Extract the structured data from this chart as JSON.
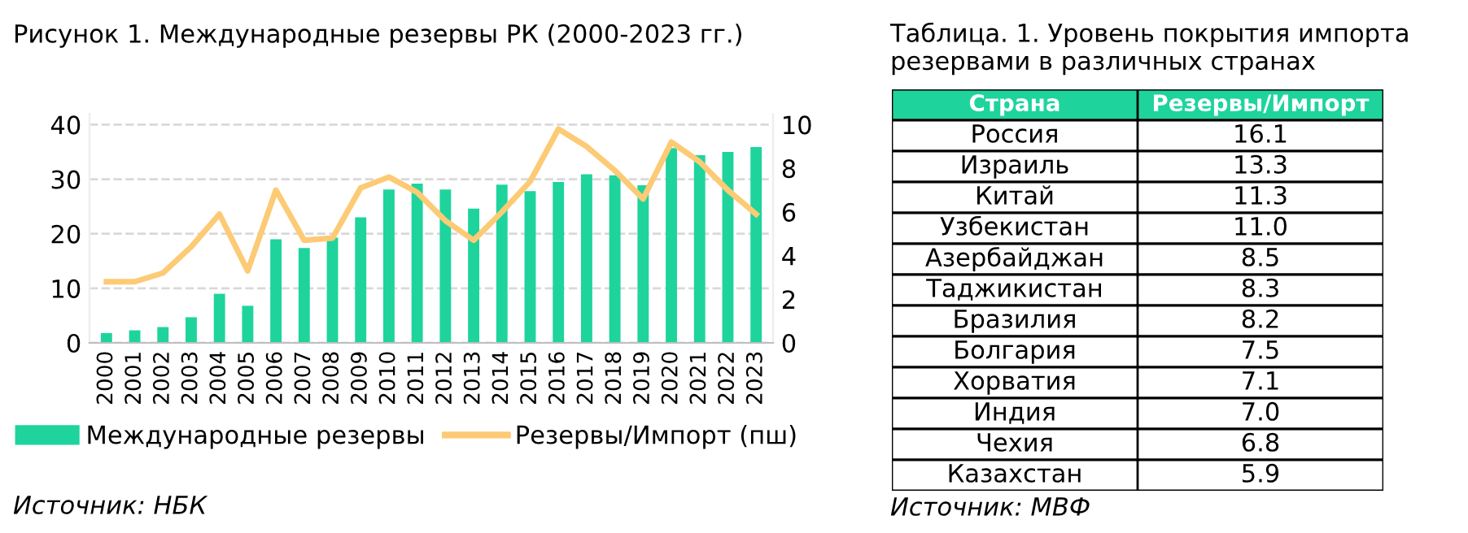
{
  "chart_data": [
    {
      "type": "bar",
      "title": "Рисунок 1. Международные резервы РК (2000-2023 гг.)",
      "categories": [
        "2000",
        "2001",
        "2002",
        "2003",
        "2004",
        "2005",
        "2006",
        "2007",
        "2008",
        "2009",
        "2010",
        "2011",
        "2012",
        "2013",
        "2014",
        "2015",
        "2016",
        "2017",
        "2018",
        "2019",
        "2020",
        "2021",
        "2022",
        "2023"
      ],
      "series": [
        {
          "name": "Международные резервы",
          "type": "bar",
          "color": "#1ed49c",
          "values": [
            1.8,
            2.3,
            2.9,
            4.7,
            9.0,
            6.8,
            19.0,
            17.4,
            19.3,
            23.0,
            28.1,
            29.2,
            28.1,
            24.6,
            29.0,
            27.8,
            29.5,
            30.9,
            30.7,
            28.9,
            35.7,
            34.4,
            35.0,
            35.9
          ]
        },
        {
          "name": "Резервы/Импорт (пш)",
          "type": "line",
          "axis": "y2",
          "color": "#fdca75",
          "values": [
            2.8,
            2.8,
            3.2,
            4.4,
            5.9,
            3.3,
            7.0,
            4.7,
            4.8,
            7.1,
            7.6,
            6.9,
            5.6,
            4.7,
            6.0,
            7.4,
            9.8,
            9.0,
            7.9,
            6.6,
            9.2,
            8.3,
            7.0,
            5.9
          ]
        }
      ],
      "ylim": [
        0,
        42
      ],
      "yticks": [
        0,
        10,
        20,
        30,
        40
      ],
      "y2lim": [
        0,
        10.5
      ],
      "y2ticks": [
        0,
        2,
        4,
        6,
        8,
        10
      ],
      "grid": "y",
      "legend": "bottom",
      "marker": "none",
      "line_style": "solid",
      "annotations": [
        "Источник: НБК"
      ]
    },
    {
      "type": "other",
      "title": "Таблица. 1. Уровень покрытия импорта резервами в различных странах",
      "xlabel": "Страна",
      "ylabel": "Резервы/Импорт",
      "categories": [
        "Россия",
        "Израиль",
        "Китай",
        "Узбекистан",
        "Азербайджан",
        "Таджикистан",
        "Бразилия",
        "Болгария",
        "Хорватия",
        "Индия",
        "Чехия",
        "Казахстан"
      ],
      "value_labels": [
        "16.1",
        "13.3",
        "11.3",
        "11.0",
        "8.5",
        "8.3",
        "8.2",
        "7.5",
        "7.1",
        "7.0",
        "6.8",
        "5.9"
      ],
      "annotations": [
        "Источник: МВФ"
      ]
    }
  ]
}
